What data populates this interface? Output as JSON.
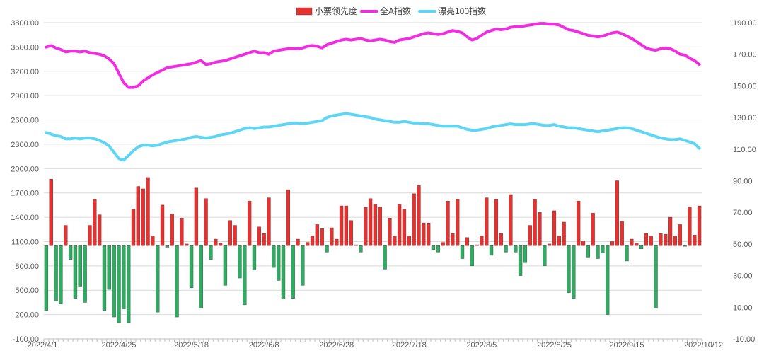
{
  "chart_data": {
    "type": "bar+line",
    "title": "",
    "legend": {
      "placement": "top-center",
      "entries": [
        {
          "name": "小票领先度",
          "kind": "bar",
          "color": "#E8302E"
        },
        {
          "name": "全A指数",
          "kind": "line",
          "color": "#F02DE0"
        },
        {
          "name": "漂亮100指数",
          "kind": "line",
          "color": "#5CD6F4"
        }
      ]
    },
    "left_axis": {
      "range": [
        -100,
        3800
      ],
      "ticks": [
        "-100.00",
        "200.00",
        "500.00",
        "800.00",
        "1100.00",
        "1400.00",
        "1700.00",
        "2000.00",
        "2300.00",
        "2600.00",
        "2900.00",
        "3200.00",
        "3500.00",
        "3800.00"
      ],
      "tick_values": [
        -100,
        200,
        500,
        800,
        1100,
        1400,
        1700,
        2000,
        2300,
        2600,
        2900,
        3200,
        3500,
        3800
      ]
    },
    "right_axis": {
      "range": [
        -10,
        190
      ],
      "ticks": [
        "-10.00",
        "10.00",
        "30.00",
        "50.00",
        "70.00",
        "90.00",
        "110.00",
        "130.00",
        "150.00",
        "170.00",
        "190.00"
      ],
      "tick_values": [
        -10,
        10,
        30,
        50,
        70,
        90,
        110,
        130,
        150,
        170,
        190
      ]
    },
    "x_axis": {
      "labels": [
        "2022/4/1",
        "2022/4/25",
        "2022/5/18",
        "2022/6/8",
        "2022/6/28",
        "2022/7/18",
        "2022/8/5",
        "2022/8/25",
        "2022/9/15",
        "2022/10/12"
      ],
      "label_index": [
        0,
        15,
        30,
        45,
        60,
        75,
        90,
        105,
        120,
        135
      ],
      "count": 136
    },
    "grid": true,
    "bar_baseline": 1050,
    "series": [
      {
        "name": "小票领先度",
        "axis": "left",
        "pos_color": "#E8302E",
        "neg_color": "#2EAD62",
        "values": [
          250,
          1870,
          370,
          330,
          1300,
          880,
          400,
          550,
          350,
          1300,
          1620,
          1430,
          250,
          510,
          170,
          100,
          270,
          100,
          1500,
          1780,
          1750,
          1890,
          1170,
          230,
          1550,
          1030,
          1440,
          170,
          1390,
          1070,
          530,
          1760,
          280,
          1630,
          880,
          1130,
          1080,
          560,
          1360,
          1300,
          650,
          320,
          1600,
          750,
          1280,
          1200,
          1640,
          780,
          620,
          390,
          1740,
          400,
          1130,
          560,
          1090,
          1170,
          1310,
          1260,
          970,
          1270,
          1130,
          1540,
          1540,
          1360,
          1060,
          970,
          1520,
          1630,
          1560,
          1530,
          760,
          1390,
          1170,
          1560,
          1500,
          1170,
          1690,
          1790,
          1330,
          1330,
          1000,
          970,
          1090,
          1600,
          1200,
          1620,
          890,
          1150,
          800,
          1060,
          1170,
          1640,
          930,
          1620,
          1200,
          970,
          1680,
          970,
          680,
          840,
          1300,
          1620,
          1460,
          800,
          1070,
          1480,
          1170,
          1340,
          470,
          400,
          1600,
          1110,
          900,
          1450,
          890,
          960,
          200,
          1100,
          1850,
          1350,
          860,
          1130,
          1080,
          1010,
          1200,
          1170,
          280,
          1200,
          1190,
          1400,
          1170,
          1310,
          1040,
          1530,
          1180,
          1540
        ]
      },
      {
        "name": "全A指数",
        "axis": "right",
        "color": "#F02DE0",
        "values": [
          174.5,
          175.5,
          174,
          173,
          171.5,
          172,
          172,
          171.5,
          172,
          171,
          170.5,
          170,
          169,
          167,
          164,
          158,
          152,
          149,
          149,
          150,
          153,
          155,
          157,
          158.5,
          160,
          161.5,
          162,
          162.5,
          163,
          163.5,
          164,
          165,
          166,
          163.5,
          164,
          165,
          165.5,
          166,
          167,
          168,
          169,
          170,
          171,
          172,
          171,
          171,
          170,
          172,
          172.5,
          173,
          173.5,
          173.5,
          173.5,
          174,
          175,
          175.5,
          175,
          174,
          176,
          177,
          178,
          179,
          179.5,
          179,
          179.5,
          180,
          179,
          178.5,
          179,
          179.5,
          179,
          178,
          177.5,
          179,
          179.5,
          180,
          181,
          182,
          183,
          183.5,
          183,
          182.5,
          183,
          184,
          185,
          184.5,
          183.5,
          181,
          179,
          180,
          182,
          184,
          185,
          186,
          185.5,
          186,
          187,
          187.5,
          187.5,
          188,
          188.5,
          189,
          189.5,
          189.5,
          189,
          189,
          188.5,
          187,
          185.5,
          185,
          184,
          183,
          182,
          181.5,
          181,
          181.5,
          182.5,
          183.5,
          184,
          183,
          181.5,
          180,
          178,
          176,
          174,
          173,
          172.5,
          173.5,
          174,
          173.5,
          172,
          170,
          169.5,
          167.5,
          166,
          163.5
        ]
      },
      {
        "name": "漂亮100指数",
        "axis": "right",
        "color": "#5CD6F4",
        "values": [
          120.5,
          119.5,
          118.5,
          118,
          116.5,
          116.5,
          117,
          116.5,
          117,
          117,
          116.5,
          115.5,
          114,
          112,
          108,
          104,
          103,
          106,
          109,
          111.5,
          112.5,
          112.5,
          112,
          112.5,
          113.5,
          114.5,
          115,
          115.5,
          116,
          116.5,
          117.5,
          118,
          117.5,
          117,
          117.5,
          118,
          119,
          119.5,
          120,
          121,
          122,
          123,
          123.5,
          123,
          123.5,
          124,
          124,
          124.5,
          125,
          125.5,
          126,
          126.5,
          126.5,
          126,
          126.5,
          127,
          127.5,
          128,
          130,
          131,
          131.5,
          132,
          132.5,
          132,
          131.5,
          131,
          130.5,
          130,
          129,
          128.5,
          128,
          127.5,
          127,
          127,
          127.5,
          127,
          126.5,
          126.5,
          126,
          126,
          125.5,
          125,
          124.5,
          124.5,
          124.5,
          124.5,
          123.5,
          122.5,
          122,
          122,
          122.5,
          123,
          124,
          124.5,
          125,
          125.5,
          126,
          125.5,
          125.5,
          125.5,
          126,
          126,
          125.5,
          125,
          125,
          125.5,
          124.5,
          124,
          123.5,
          123.5,
          123,
          122.5,
          122,
          121.5,
          121,
          121.5,
          122,
          122.5,
          123,
          123.5,
          123.5,
          123,
          122,
          121,
          120,
          119,
          118,
          117,
          116.5,
          116,
          116,
          116.5,
          115.5,
          114.5,
          113.5,
          110.5
        ]
      }
    ]
  }
}
